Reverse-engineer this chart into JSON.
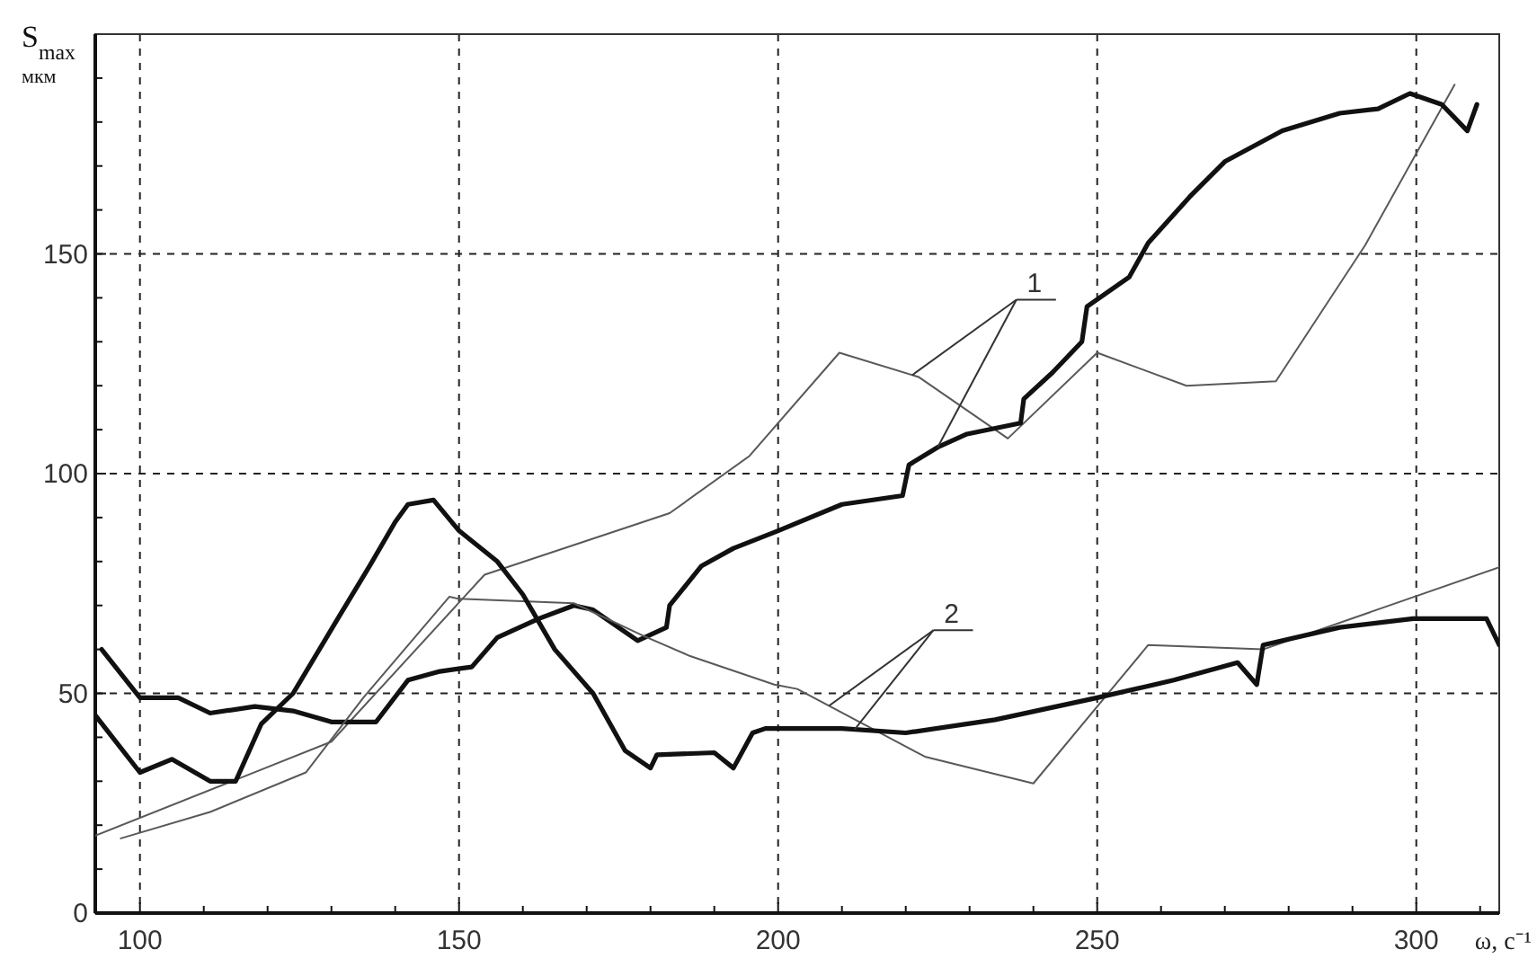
{
  "chart_data": {
    "type": "line",
    "xlabel": "ω, с⁻¹",
    "ylabel": "S$_{max}$\nмкм",
    "xlim": [
      93,
      313
    ],
    "ylim": [
      0,
      200
    ],
    "xticks": [
      100,
      {
        "value": 110,
        "label": null
      },
      {
        "value": 120,
        "label": null
      },
      {
        "value": 130,
        "label": null
      },
      {
        "value": 140,
        "label": null
      },
      150,
      {
        "value": 160,
        "label": null
      },
      {
        "value": 170,
        "label": null
      },
      {
        "value": 180,
        "label": null
      },
      {
        "value": 190,
        "label": null
      },
      200,
      {
        "value": 210,
        "label": null
      },
      {
        "value": 220,
        "label": null
      },
      {
        "value": 230,
        "label": null
      },
      {
        "value": 240,
        "label": null
      },
      250,
      {
        "value": 260,
        "label": null
      },
      {
        "value": 270,
        "label": null
      },
      {
        "value": 280,
        "label": null
      },
      {
        "value": 290,
        "label": null
      },
      300,
      {
        "value": 310,
        "label": null
      }
    ],
    "yticks": [
      0,
      {
        "value": 10,
        "label": null
      },
      {
        "value": 20,
        "label": null
      },
      {
        "value": 30,
        "label": null
      },
      {
        "value": 40,
        "label": null
      },
      50,
      {
        "value": 60,
        "label": null
      },
      {
        "value": 70,
        "label": null
      },
      {
        "value": 80,
        "label": null
      },
      {
        "value": 90,
        "label": null
      },
      100,
      {
        "value": 110,
        "label": null
      },
      {
        "value": 120,
        "label": null
      },
      {
        "value": 130,
        "label": null
      },
      {
        "value": 140,
        "label": null
      },
      150,
      {
        "value": 160,
        "label": null
      },
      {
        "value": 170,
        "label": null
      },
      {
        "value": 180,
        "label": null
      },
      {
        "value": 190,
        "label": null
      }
    ],
    "grid": true,
    "line_style": "solid",
    "marker": "none",
    "series": [
      {
        "color": "#595959",
        "x": [
          93,
          130,
          154,
          183,
          195.5,
          209.6,
          222,
          236,
          250,
          264,
          278,
          292,
          306
        ],
        "values": [
          17.6,
          39,
          77,
          91,
          104,
          127.5,
          122,
          108,
          127.5,
          120,
          121,
          152,
          188.5
        ]
      },
      {
        "color": "#111111",
        "x": [
          94,
          100,
          106,
          111,
          118,
          124,
          130,
          137,
          142,
          147,
          152,
          156,
          162.5,
          168,
          171,
          178,
          182.5,
          183,
          188,
          193,
          200,
          210,
          219.5,
          220.5,
          225,
          229.6,
          238,
          238.5,
          243,
          247.6,
          248.4,
          255,
          258,
          264.5,
          270,
          279,
          288,
          294,
          299,
          304,
          308,
          309.5
        ],
        "values": [
          60,
          49,
          49,
          45.5,
          47,
          46,
          43.5,
          43.5,
          53,
          55,
          56,
          62.7,
          67,
          70,
          69,
          62,
          65,
          70,
          79,
          83,
          87,
          93,
          95,
          102,
          106,
          109,
          111.5,
          117,
          123,
          130,
          138,
          144.7,
          152.5,
          163,
          171,
          178,
          182,
          183,
          186.5,
          184,
          178,
          184
        ]
      },
      {
        "color": "#595959",
        "x": [
          97,
          111,
          126,
          135,
          148.5,
          150,
          168,
          179,
          186,
          199.4,
          203,
          223,
          240,
          258,
          276,
          313
        ],
        "values": [
          17,
          23,
          32,
          49,
          72,
          71.5,
          70.5,
          63,
          58.6,
          52,
          51,
          35.6,
          29.5,
          61,
          60,
          78.7
        ]
      },
      {
        "color": "#111111",
        "x": [
          93,
          100,
          105,
          111,
          115,
          119,
          124,
          131,
          136,
          140,
          142,
          146,
          150,
          156,
          160,
          165,
          171,
          176,
          180,
          181,
          190,
          193,
          196,
          198,
          210,
          220,
          234,
          250,
          262,
          272,
          275,
          276,
          288,
          299.5,
          311,
          313
        ],
        "values": [
          45,
          32,
          35,
          30,
          30,
          43,
          50,
          67,
          79,
          89,
          93,
          94,
          87,
          80,
          72.5,
          60,
          50,
          37,
          33,
          36,
          36.5,
          33,
          41,
          42,
          42,
          41,
          44,
          49,
          53,
          57,
          52,
          61,
          65,
          67,
          67,
          61
        ]
      }
    ],
    "annotations": [
      {
        "text": "1",
        "x": 221,
        "y": 122.4
      },
      {
        "text": "2",
        "x": 208,
        "y": 47.2
      }
    ]
  }
}
